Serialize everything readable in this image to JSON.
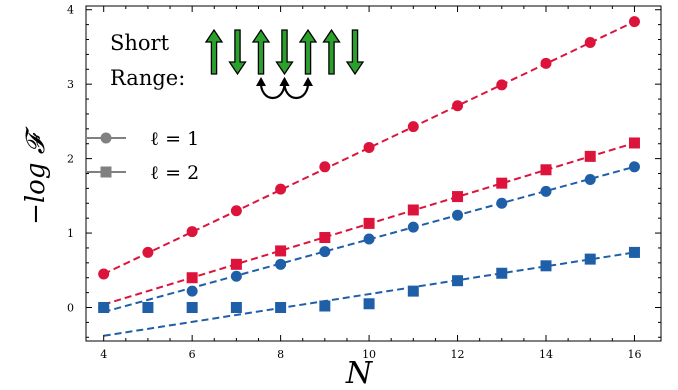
{
  "chart_data": {
    "type": "scatter",
    "xlabel": "N",
    "ylabel": "−log 𝓕",
    "xlim": [
      3.6,
      16.6
    ],
    "ylim": [
      -0.45,
      4.05
    ],
    "xticks": [
      4,
      6,
      8,
      10,
      12,
      14,
      16
    ],
    "yticks": [
      0,
      1,
      2,
      3,
      4
    ],
    "grid": false,
    "legend_placement": "center-left",
    "annotation": {
      "lines": [
        "Short",
        "Range:"
      ],
      "spins": [
        "up",
        "down",
        "up",
        "down",
        "up",
        "up",
        "down"
      ],
      "spin_color": "#2ca02c",
      "arc_spin_pairs": [
        [
          2,
          3
        ],
        [
          3,
          4
        ]
      ]
    },
    "legend": [
      {
        "label": "ℓ = 1",
        "marker": "circle",
        "color": "#808080"
      },
      {
        "label": "ℓ = 2",
        "marker": "square",
        "color": "#808080"
      }
    ],
    "series": [
      {
        "color": "#dc143c",
        "marker": "circle",
        "x": [
          4,
          5,
          6,
          7,
          8,
          9,
          10,
          11,
          12,
          13,
          14,
          15,
          16
        ],
        "y": [
          0.45,
          0.74,
          1.02,
          1.3,
          1.59,
          1.89,
          2.15,
          2.43,
          2.71,
          2.99,
          3.28,
          3.56,
          3.84
        ],
        "fit": [
          [
            4,
            0.45
          ],
          [
            16,
            3.84
          ]
        ]
      },
      {
        "color": "#dc143c",
        "marker": "square",
        "x": [
          6,
          7,
          8,
          9,
          10,
          11,
          12,
          13,
          14,
          15,
          16
        ],
        "y": [
          0.4,
          0.58,
          0.76,
          0.94,
          1.13,
          1.31,
          1.49,
          1.67,
          1.85,
          2.03,
          2.21
        ],
        "fit": [
          [
            4,
            0.04
          ],
          [
            16,
            2.21
          ]
        ]
      },
      {
        "color": "#1f5fa8",
        "marker": "circle",
        "x": [
          4,
          6,
          7,
          8,
          9,
          10,
          11,
          12,
          13,
          14,
          15,
          16
        ],
        "y": [
          0.0,
          0.22,
          0.42,
          0.58,
          0.75,
          0.92,
          1.08,
          1.24,
          1.4,
          1.56,
          1.72,
          1.89
        ],
        "fit": [
          [
            4,
            -0.06
          ],
          [
            16,
            1.89
          ]
        ]
      },
      {
        "color": "#1f5fa8",
        "marker": "square",
        "x": [
          4,
          5,
          6,
          7,
          8,
          9,
          10,
          11,
          12,
          13,
          14,
          15,
          16
        ],
        "y": [
          0.0,
          0.0,
          0.0,
          0.0,
          0.0,
          0.02,
          0.05,
          0.22,
          0.36,
          0.46,
          0.56,
          0.65,
          0.74
        ],
        "fit": [
          [
            4,
            -0.38
          ],
          [
            16,
            0.74
          ]
        ]
      }
    ]
  }
}
